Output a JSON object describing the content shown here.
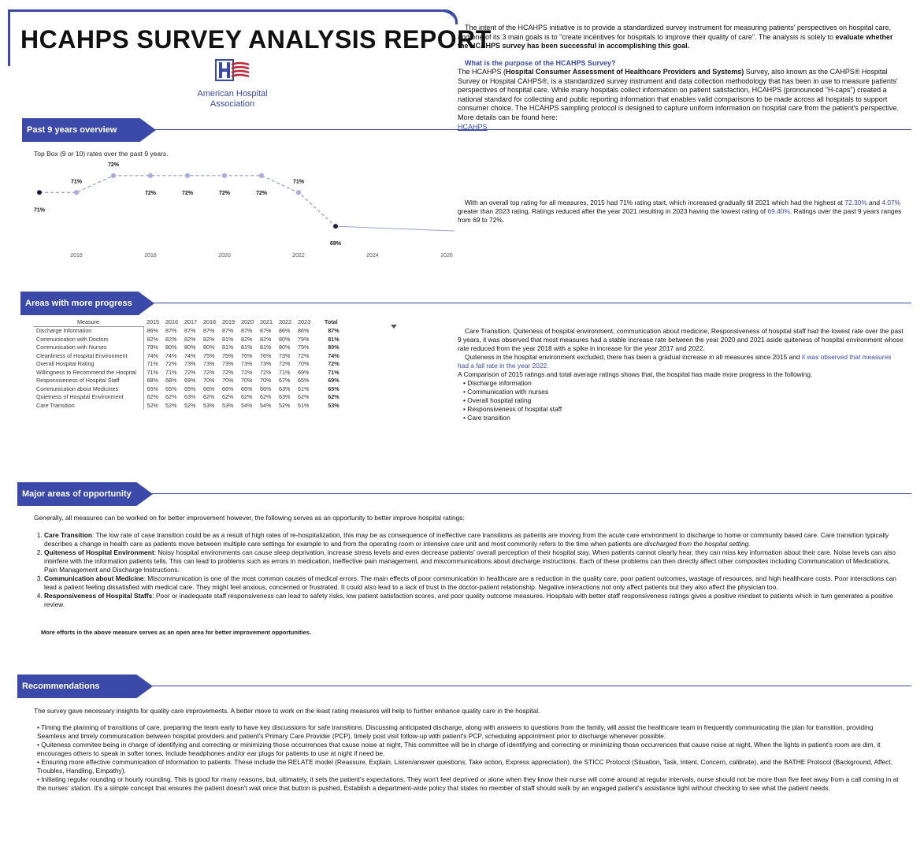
{
  "header": {
    "title": "HCAHPS SURVEY ANALYSIS REPORT",
    "logo_text_line1": "American Hospital",
    "logo_text_line2": "Association"
  },
  "intro": {
    "p1_pre": "The intent of the HCAHPS initiative is to provide a standardized survey instrument for measuring patients' perspectives on hospital care, and one of its 3 main goals is to \"create incentives for hospitals to improve their quality of care\". The analysis is solely to ",
    "p1_bold": "evaluate whether the HCAHPS survey has been successful in accomplishing this goal.",
    "question": "What is the purpose of the HCAHPS Survey?",
    "p2_pre": "The HCAHPS (",
    "p2_bold": "Hospital Consumer Assessment of Healthcare Providers and Systems)",
    "p2_post": " Survey, also known as the CAHPS® Hospital Survey or Hospital CAHPS®, is a standardized survey instrument and data collection methodology that has been in use to measure patients' perspectives of hospital care. While many hospitals collect information on patient satisfaction, HCAHPS (pronounced \"H-caps\") created a national standard for collecting and public reporting information that enables valid comparisons to be made across all hospitals to support consumer choice. The HCAHPS sampling protocol is designed to capture uniform information on hospital care from the patient's perspective. More details can be found here:",
    "link": "HCAHPS"
  },
  "sections": {
    "overview": "Past 9 years overview",
    "progress": "Areas with more progress",
    "opportunity": "Major areas of opportunity",
    "recommendations": "Recommendations"
  },
  "overview_text": {
    "pre": "With an overall top rating for all measures, 2015 had 71% rating start, which increased gradually till 2021 which had the highest at ",
    "hl1": "72.30%",
    "mid1": " and ",
    "hl2": "4.07%",
    "mid2": " greater than 2023 rating,  Ratings  reduced after the year 2021 resulting in 2023 having the lowest rating of ",
    "hl3": "69.40%",
    "post": ". Ratings over the past 9 years ranges from 69 to 72%."
  },
  "chart_data": {
    "type": "line",
    "title": "Top Box (9 or 10) rates over the past 9 years.",
    "x": [
      2015,
      2016,
      2017,
      2018,
      2019,
      2020,
      2021,
      2022,
      2023
    ],
    "values": [
      71,
      71,
      72,
      72,
      72,
      72,
      72,
      71,
      69
    ],
    "labels": [
      "71%",
      "71%",
      "72%",
      "72%",
      "72%",
      "72%",
      "72%",
      "71%",
      "69%"
    ],
    "xticks": [
      2016,
      2018,
      2020,
      2022,
      2024,
      2026
    ],
    "xlim": [
      2015,
      2026
    ],
    "ylim": [
      68.4,
      72.6
    ],
    "grid": false,
    "line_style": "dashed",
    "color": "#7a84c7"
  },
  "table": {
    "headers": [
      "Measure",
      "2015",
      "2016",
      "2017",
      "2018",
      "2019",
      "2020",
      "2021",
      "2022",
      "2023",
      "Total"
    ],
    "rows": [
      [
        "Discharge Information",
        "86%",
        "87%",
        "87%",
        "87%",
        "87%",
        "87%",
        "87%",
        "86%",
        "86%",
        "87%"
      ],
      [
        "Communication with Doctors",
        "82%",
        "82%",
        "82%",
        "82%",
        "81%",
        "82%",
        "82%",
        "80%",
        "79%",
        "81%"
      ],
      [
        "Communication with Nurses",
        "79%",
        "80%",
        "80%",
        "80%",
        "81%",
        "81%",
        "81%",
        "80%",
        "79%",
        "80%"
      ],
      [
        "Cleanliness of Hospital Environment",
        "74%",
        "74%",
        "74%",
        "75%",
        "75%",
        "76%",
        "76%",
        "73%",
        "72%",
        "74%"
      ],
      [
        "Overall Hospital Rating",
        "71%",
        "72%",
        "73%",
        "73%",
        "73%",
        "73%",
        "73%",
        "72%",
        "70%",
        "72%"
      ],
      [
        "Willingness to Recommend the Hospital",
        "71%",
        "71%",
        "72%",
        "72%",
        "72%",
        "72%",
        "72%",
        "71%",
        "69%",
        "71%"
      ],
      [
        "Responsiveness of Hospital Staff",
        "68%",
        "68%",
        "69%",
        "70%",
        "70%",
        "70%",
        "70%",
        "67%",
        "65%",
        "69%"
      ],
      [
        "Communication about Medicines",
        "65%",
        "65%",
        "65%",
        "66%",
        "66%",
        "66%",
        "66%",
        "63%",
        "61%",
        "65%"
      ],
      [
        "Quietness of Hospital Environment",
        "62%",
        "62%",
        "63%",
        "62%",
        "62%",
        "62%",
        "62%",
        "63%",
        "62%",
        "62%"
      ],
      [
        "Care Transition",
        "52%",
        "52%",
        "52%",
        "53%",
        "53%",
        "54%",
        "54%",
        "52%",
        "51%",
        "53%"
      ]
    ]
  },
  "progress_text": {
    "p1": "Care Transition, Quiteness of hospital environment, communication about medicine, Responsiveness of hospital staff had the lowest rate over the past 9  years, it was observed that most measures had a stable increase rate between the year 2020 and 2021 aside quiteness of hospital environment whose rate reduced from the year 2018 with a spike in increase for the year 2017 and 2022.",
    "p2_pre": "Quiteness in the hospital environment excluded, there has been a gradual increase in all measures since 2015 and ",
    "p2_hl": "it was observed that measures had a fall rate in the year 2022.",
    "p3": "A Comparison of 2015 ratings and total average ratings shows that, the hospital has made more progress in the following.",
    "bullets": [
      "Discharge information",
      "Communication with nurses",
      "Overall hospital rating",
      "Responsiveness of hospital staff",
      "Care transition"
    ]
  },
  "opportunity": {
    "intro": "Generally, all measures can be worked on for better improvement however, the following serves as an opportunity to  better improve hospital ratings:",
    "items": [
      {
        "head": "Care Transition",
        "pre": ":  The low rate of case transition could be as a result of high rates of re-hospitalization, this may be as consequence of ineffective care transitions as patients are moving from the acute care environment to discharge to home or community based care. Care transition typically describes a change in health care as patients move between multiple care settings for example to and from the operating room or intensive care unit and most commonly refers to the time when patients are ",
        "em": "discharged from the hospital setting.",
        "post": ""
      },
      {
        "head": "Quiteness of Hospital Environment",
        "pre": ": Noisy hospital environments can cause sleep deprivation, increase stress levels and even decrease  patients' overall perception of their hospital stay. When patients cannot clearly hear, they can miss key information about their care. Noise levels can also interfere with the information patients tells. This can lead to problems such as errors in medication, ineffective pain management, and miscommunications about discharge instructions. Each of these problems can then directly affect other composites including Communication of Medications, Pain Management and Discharge Instructions.",
        "em": "",
        "post": ""
      },
      {
        "head": "Communication about Medicine",
        "pre": ":  Miscommunication is one of the most common causes of medical errors. The main effects of poor communication in healthcare are a reduction in the quality care, poor patient outcomes, wastage of resources, and high healthcare costs. Poor interactions can lead a patient feeling dissatisfied with medical care. They might feel anxious, concerned or frustrated. It could also lead to a lack of trust in the doctor-patient relationship. Negative interactions not only affect patients but they also affect the physician too.",
        "em": "",
        "post": ""
      },
      {
        "head": "Responsiveness of Hospital Staffs",
        "pre": ": Poor or inadequate staff responsiveness can lead to safety risks, low patient satisfaction scores, and poor quality outcome measures. Hospitals with better staff responsiveness ratings gives a positive mindset to patients which in turn generates a positive review.",
        "em": "",
        "post": ""
      }
    ],
    "closing": "More efforts in the above measure serves as an open area for better improvement opportunities."
  },
  "recommendations": {
    "intro": "The survey gave necessary insights for quality care improvements. A better move to work on the least rating measures will help to further enhance quality care in the hospital.",
    "items": [
      "Timing the planning of transitions of care, preparing the team early to have key discussions for safe transitions. Discussing anticipated discharge, along with answers to questions from the family, will assist the healthcare team in frequently communicating the plan for transition,  providing Seamless and timely communication between hospital providers and patient's Primary Care Provider (PCP), timely post visit follow-up with patient's PCP, scheduling appointment prior to discharge whenever possible.",
      " Quiteness commitee being in charge of identifying and correcting or minimizing those occurrences that cause noise at night, This committee will be in charge of identifying and correcting or minimizing those occurrences that cause noise at night, When the lights in patient's room are dim, it encourages others to speak in softer tones, Include headphones and/or ear plugs for patients to use at night if need be.",
      "Ensuring more effective communication of information to patients. These include the RELATE model (Reassure, Explain, Listen/answer questions, Take action, Express appreciation), the STICC Protocol (Situation, Task, Intent, Concern, calibrate), and the BATHE Protocol (Background, Affect, Troubles, Handling, Empathy).",
      "Initiating regular rounding or hourly rounding. This is good for many reasons, but, ultimately, it sets the patient's expectations. They won't feel deprived or alone when they know their nurse will come around at regular intervals, nurse should not be more than five feet away from a call coming in at the nurses' station. It's a simple concept that ensures the patient doesn't wait once that button is pushed, Establish a department-wide policy that states no member of staff should walk by an engaged patient's assistance light without checking to see what the patient needs."
    ]
  }
}
